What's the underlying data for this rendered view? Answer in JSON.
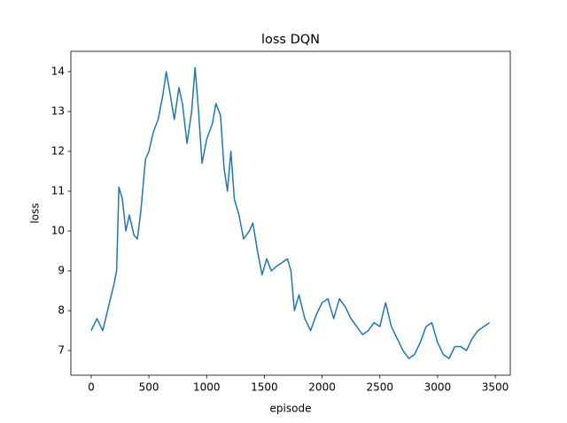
{
  "chart_data": {
    "type": "line",
    "title": "loss DQN",
    "x_label": "episode",
    "y_label": "loss",
    "x": [
      0,
      50,
      100,
      150,
      200,
      220,
      240,
      270,
      300,
      330,
      370,
      400,
      430,
      470,
      500,
      540,
      580,
      620,
      650,
      680,
      720,
      760,
      790,
      830,
      870,
      900,
      930,
      960,
      1000,
      1050,
      1080,
      1120,
      1150,
      1180,
      1210,
      1240,
      1280,
      1320,
      1370,
      1400,
      1440,
      1480,
      1520,
      1560,
      1600,
      1650,
      1700,
      1730,
      1760,
      1800,
      1850,
      1900,
      1950,
      2000,
      2050,
      2100,
      2150,
      2200,
      2250,
      2300,
      2350,
      2400,
      2450,
      2500,
      2550,
      2600,
      2650,
      2700,
      2750,
      2800,
      2850,
      2900,
      2950,
      3000,
      3050,
      3100,
      3150,
      3200,
      3250,
      3300,
      3350,
      3400,
      3450
    ],
    "series": [
      {
        "name": "loss",
        "color": "#1f77b4",
        "values": [
          7.5,
          7.8,
          7.5,
          8.1,
          8.7,
          9.0,
          11.1,
          10.8,
          10.0,
          10.4,
          9.9,
          9.8,
          10.5,
          11.8,
          12.0,
          12.5,
          12.8,
          13.4,
          14.0,
          13.5,
          12.8,
          13.6,
          13.2,
          12.2,
          13.0,
          14.1,
          13.0,
          11.7,
          12.3,
          12.7,
          13.2,
          12.9,
          11.6,
          11.0,
          12.0,
          10.8,
          10.4,
          9.8,
          10.0,
          10.2,
          9.5,
          8.9,
          9.3,
          9.0,
          9.1,
          9.2,
          9.3,
          9.0,
          8.0,
          8.4,
          7.8,
          7.5,
          7.9,
          8.2,
          8.3,
          7.8,
          8.3,
          8.1,
          7.8,
          7.6,
          7.4,
          7.5,
          7.7,
          7.6,
          8.2,
          7.6,
          7.3,
          7.0,
          6.8,
          6.9,
          7.2,
          7.6,
          7.7,
          7.2,
          6.9,
          6.8,
          7.1,
          7.1,
          7.0,
          7.3,
          7.5,
          7.6,
          7.7
        ]
      }
    ],
    "xlim": [
      -176,
      3630
    ],
    "ylim": [
      6.38,
      14.51
    ],
    "xticks": [
      0,
      500,
      1000,
      1500,
      2000,
      2500,
      3000,
      3500
    ],
    "yticks": [
      7,
      8,
      9,
      10,
      11,
      12,
      13,
      14
    ]
  }
}
